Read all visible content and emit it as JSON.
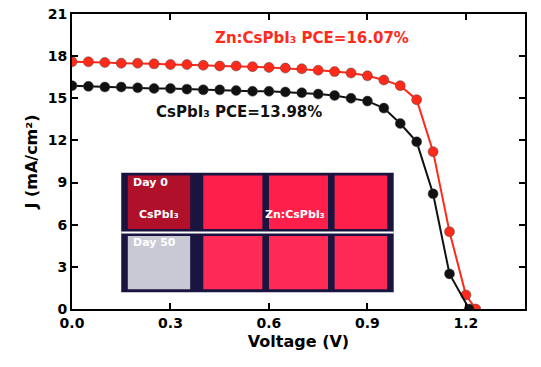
{
  "chart_data": {
    "type": "line",
    "x_title": "Voltage (V)",
    "y_title": "J (mA/cm²)",
    "xlim": [
      0,
      1.38
    ],
    "xticks": [
      {
        "value": 0,
        "label": "0.0"
      },
      0.3,
      0.6,
      0.9,
      1.2
    ],
    "ylim": [
      0,
      21
    ],
    "yticks": [
      0,
      3,
      6,
      9,
      12,
      15,
      18,
      21
    ],
    "grid": false,
    "series": [
      {
        "name": "Zn:CsPbI₃ PCE=16.07%",
        "color": "#ff2a1a",
        "marker": "circle",
        "line_style": "solid",
        "x": [
          0,
          0.05,
          0.1,
          0.15,
          0.2,
          0.25,
          0.3,
          0.35,
          0.4,
          0.45,
          0.5,
          0.55,
          0.6,
          0.65,
          0.7,
          0.75,
          0.8,
          0.85,
          0.9,
          0.95,
          1.0,
          1.05,
          1.1,
          1.15,
          1.2,
          1.23
        ],
        "values": [
          17.6,
          17.6,
          17.55,
          17.5,
          17.5,
          17.45,
          17.4,
          17.4,
          17.35,
          17.3,
          17.3,
          17.25,
          17.2,
          17.15,
          17.1,
          17.0,
          16.9,
          16.8,
          16.6,
          16.3,
          15.9,
          14.9,
          11.2,
          5.5,
          1.0,
          0
        ]
      },
      {
        "name": "CsPbI₃ PCE=13.98%",
        "color": "#111111",
        "marker": "circle",
        "line_style": "solid",
        "x": [
          0,
          0.05,
          0.1,
          0.15,
          0.2,
          0.25,
          0.3,
          0.35,
          0.4,
          0.45,
          0.5,
          0.55,
          0.6,
          0.65,
          0.7,
          0.75,
          0.8,
          0.85,
          0.9,
          0.95,
          1.0,
          1.05,
          1.1,
          1.15,
          1.21
        ],
        "values": [
          15.9,
          15.85,
          15.8,
          15.8,
          15.75,
          15.7,
          15.7,
          15.65,
          15.6,
          15.6,
          15.55,
          15.5,
          15.5,
          15.45,
          15.4,
          15.3,
          15.2,
          15.0,
          14.8,
          14.3,
          13.2,
          11.9,
          8.2,
          2.5,
          0
        ]
      }
    ],
    "inset_labels": [
      "Day 0",
      "CsPbI₃",
      "Zn:CsPbI₃",
      "Day 50"
    ]
  }
}
